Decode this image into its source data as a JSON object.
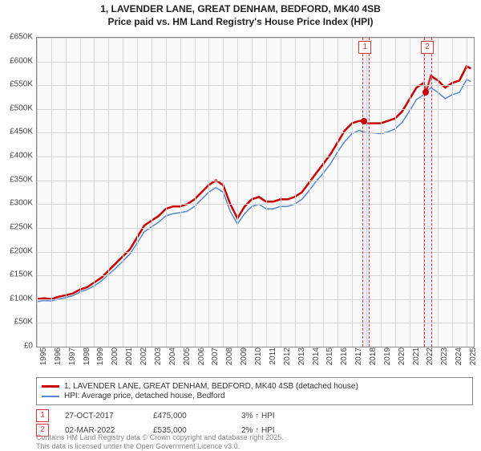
{
  "title": {
    "line1": "1, LAVENDER LANE, GREAT DENHAM, BEDFORD, MK40 4SB",
    "line2": "Price paid vs. HM Land Registry's House Price Index (HPI)"
  },
  "chart": {
    "type": "line",
    "background_color": "#fafafa",
    "grid_color": "#d5d5d5",
    "border_color": "#888",
    "ylim": [
      0,
      650000
    ],
    "ytick_step": 50000,
    "y_labels": [
      "£0",
      "£50K",
      "£100K",
      "£150K",
      "£200K",
      "£250K",
      "£300K",
      "£350K",
      "£400K",
      "£450K",
      "£500K",
      "£550K",
      "£600K",
      "£650K"
    ],
    "xlim": [
      1995,
      2025.5
    ],
    "x_labels": [
      "1995",
      "1996",
      "1997",
      "1998",
      "1999",
      "2000",
      "2001",
      "2002",
      "2003",
      "2004",
      "2005",
      "2006",
      "2007",
      "2008",
      "2009",
      "2010",
      "2011",
      "2012",
      "2013",
      "2014",
      "2015",
      "2016",
      "2017",
      "2018",
      "2019",
      "2020",
      "2021",
      "2022",
      "2023",
      "2024",
      "2025"
    ],
    "series": [
      {
        "name": "property",
        "label": "1, LAVENDER LANE, GREAT DENHAM, BEDFORD, MK40 4SB (detached house)",
        "color": "#cc0000",
        "width": 2.5,
        "points": [
          [
            1995,
            100000
          ],
          [
            1995.5,
            102000
          ],
          [
            1996,
            100000
          ],
          [
            1996.5,
            105000
          ],
          [
            1997,
            108000
          ],
          [
            1997.5,
            112000
          ],
          [
            1998,
            120000
          ],
          [
            1998.5,
            125000
          ],
          [
            1999,
            135000
          ],
          [
            1999.5,
            145000
          ],
          [
            2000,
            160000
          ],
          [
            2000.5,
            175000
          ],
          [
            2001,
            190000
          ],
          [
            2001.5,
            205000
          ],
          [
            2002,
            230000
          ],
          [
            2002.5,
            255000
          ],
          [
            2003,
            265000
          ],
          [
            2003.5,
            275000
          ],
          [
            2004,
            290000
          ],
          [
            2004.5,
            295000
          ],
          [
            2005,
            295000
          ],
          [
            2005.5,
            300000
          ],
          [
            2006,
            310000
          ],
          [
            2006.5,
            325000
          ],
          [
            2007,
            340000
          ],
          [
            2007.5,
            350000
          ],
          [
            2008,
            340000
          ],
          [
            2008.5,
            300000
          ],
          [
            2009,
            270000
          ],
          [
            2009.5,
            295000
          ],
          [
            2010,
            310000
          ],
          [
            2010.5,
            315000
          ],
          [
            2011,
            305000
          ],
          [
            2011.5,
            305000
          ],
          [
            2012,
            310000
          ],
          [
            2012.5,
            310000
          ],
          [
            2013,
            315000
          ],
          [
            2013.5,
            325000
          ],
          [
            2014,
            345000
          ],
          [
            2014.5,
            365000
          ],
          [
            2015,
            385000
          ],
          [
            2015.5,
            405000
          ],
          [
            2016,
            430000
          ],
          [
            2016.5,
            455000
          ],
          [
            2017,
            470000
          ],
          [
            2017.5,
            475000
          ],
          [
            2017.82,
            475000
          ],
          [
            2018,
            470000
          ],
          [
            2018.5,
            470000
          ],
          [
            2019,
            470000
          ],
          [
            2019.5,
            475000
          ],
          [
            2020,
            480000
          ],
          [
            2020.5,
            495000
          ],
          [
            2021,
            520000
          ],
          [
            2021.5,
            545000
          ],
          [
            2022,
            555000
          ],
          [
            2022.17,
            535000
          ],
          [
            2022.5,
            570000
          ],
          [
            2023,
            560000
          ],
          [
            2023.5,
            545000
          ],
          [
            2024,
            555000
          ],
          [
            2024.5,
            560000
          ],
          [
            2025,
            590000
          ],
          [
            2025.3,
            585000
          ]
        ]
      },
      {
        "name": "hpi",
        "label": "HPI: Average price, detached house, Bedford",
        "color": "#5588cc",
        "width": 1.5,
        "points": [
          [
            1995,
            95000
          ],
          [
            1995.5,
            97000
          ],
          [
            1996,
            96000
          ],
          [
            1996.5,
            100000
          ],
          [
            1997,
            103000
          ],
          [
            1997.5,
            107000
          ],
          [
            1998,
            115000
          ],
          [
            1998.5,
            120000
          ],
          [
            1999,
            128000
          ],
          [
            1999.5,
            138000
          ],
          [
            2000,
            152000
          ],
          [
            2000.5,
            165000
          ],
          [
            2001,
            180000
          ],
          [
            2001.5,
            195000
          ],
          [
            2002,
            218000
          ],
          [
            2002.5,
            242000
          ],
          [
            2003,
            252000
          ],
          [
            2003.5,
            262000
          ],
          [
            2004,
            275000
          ],
          [
            2004.5,
            280000
          ],
          [
            2005,
            282000
          ],
          [
            2005.5,
            285000
          ],
          [
            2006,
            295000
          ],
          [
            2006.5,
            310000
          ],
          [
            2007,
            325000
          ],
          [
            2007.5,
            335000
          ],
          [
            2008,
            325000
          ],
          [
            2008.5,
            285000
          ],
          [
            2009,
            258000
          ],
          [
            2009.5,
            280000
          ],
          [
            2010,
            295000
          ],
          [
            2010.5,
            300000
          ],
          [
            2011,
            290000
          ],
          [
            2011.5,
            290000
          ],
          [
            2012,
            295000
          ],
          [
            2012.5,
            295000
          ],
          [
            2013,
            300000
          ],
          [
            2013.5,
            310000
          ],
          [
            2014,
            328000
          ],
          [
            2014.5,
            348000
          ],
          [
            2015,
            365000
          ],
          [
            2015.5,
            385000
          ],
          [
            2016,
            410000
          ],
          [
            2016.5,
            432000
          ],
          [
            2017,
            448000
          ],
          [
            2017.5,
            455000
          ],
          [
            2018,
            450000
          ],
          [
            2018.5,
            450000
          ],
          [
            2019,
            448000
          ],
          [
            2019.5,
            452000
          ],
          [
            2020,
            458000
          ],
          [
            2020.5,
            472000
          ],
          [
            2021,
            495000
          ],
          [
            2021.5,
            520000
          ],
          [
            2022,
            530000
          ],
          [
            2022.5,
            545000
          ],
          [
            2023,
            535000
          ],
          [
            2023.5,
            522000
          ],
          [
            2024,
            530000
          ],
          [
            2024.5,
            535000
          ],
          [
            2025,
            562000
          ],
          [
            2025.3,
            558000
          ]
        ]
      }
    ],
    "markers": [
      {
        "num": "1",
        "x": 2017.82,
        "y": 475000,
        "band_width": 0.4
      },
      {
        "num": "2",
        "x": 2022.17,
        "y": 535000,
        "band_width": 0.4
      }
    ],
    "marker_dot_color": "#cc0000",
    "marker_border_color": "#d33"
  },
  "legend": {
    "items": [
      {
        "color": "#cc0000",
        "width": 3,
        "label": "1, LAVENDER LANE, GREAT DENHAM, BEDFORD, MK40 4SB (detached house)"
      },
      {
        "color": "#5588cc",
        "width": 2,
        "label": "HPI: Average price, detached house, Bedford"
      }
    ]
  },
  "data_rows": [
    {
      "num": "1",
      "date": "27-OCT-2017",
      "price": "£475,000",
      "delta": "3% ↑ HPI"
    },
    {
      "num": "2",
      "date": "02-MAR-2022",
      "price": "£535,000",
      "delta": "2% ↑ HPI"
    }
  ],
  "footer": {
    "line1": "Contains HM Land Registry data © Crown copyright and database right 2025.",
    "line2": "This data is licensed under the Open Government Licence v3.0."
  }
}
